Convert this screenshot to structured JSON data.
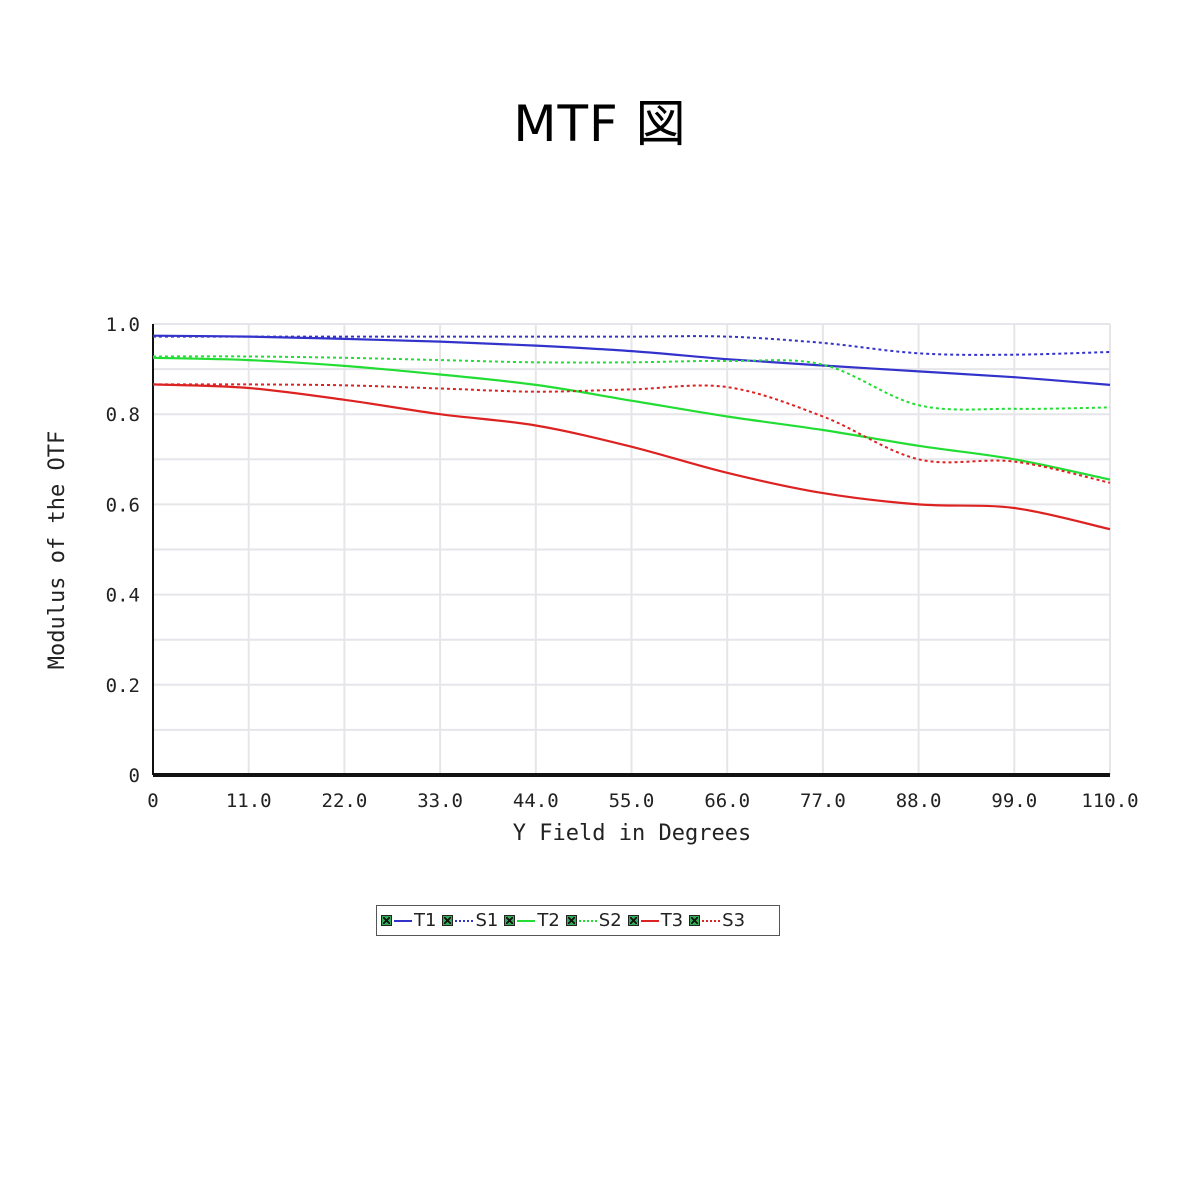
{
  "page": {
    "title": "MTF 図"
  },
  "chart_data": {
    "type": "line",
    "title": "",
    "xlabel": "Y Field in Degrees",
    "ylabel": "Modulus of the OTF",
    "xlim": [
      0,
      110
    ],
    "ylim": [
      0,
      1.0
    ],
    "x_ticks": [
      "0",
      "11.0",
      "22.0",
      "33.0",
      "44.0",
      "55.0",
      "66.0",
      "77.0",
      "88.0",
      "99.0",
      "110.0"
    ],
    "y_ticks": [
      "0",
      "0.2",
      "0.4",
      "0.6",
      "0.8",
      "1.0"
    ],
    "grid": true,
    "legend_position": "bottom",
    "x": [
      0,
      11,
      22,
      33,
      44,
      55,
      66,
      77,
      88,
      99,
      110
    ],
    "series": [
      {
        "name": "T1",
        "color": "#3333cc",
        "style": "solid",
        "values": [
          0.974,
          0.972,
          0.967,
          0.961,
          0.952,
          0.94,
          0.922,
          0.908,
          0.895,
          0.882,
          0.865
        ]
      },
      {
        "name": "S1",
        "color": "#3333cc",
        "style": "dotted",
        "values": [
          0.972,
          0.972,
          0.972,
          0.972,
          0.972,
          0.972,
          0.972,
          0.958,
          0.935,
          0.932,
          0.938
        ]
      },
      {
        "name": "T2",
        "color": "#22dd33",
        "style": "solid",
        "values": [
          0.925,
          0.92,
          0.907,
          0.888,
          0.865,
          0.83,
          0.795,
          0.765,
          0.73,
          0.7,
          0.655
        ]
      },
      {
        "name": "S2",
        "color": "#22dd33",
        "style": "dotted",
        "values": [
          0.928,
          0.928,
          0.925,
          0.92,
          0.915,
          0.915,
          0.918,
          0.91,
          0.82,
          0.812,
          0.815
        ]
      },
      {
        "name": "T3",
        "color": "#dd2222",
        "style": "solid",
        "values": [
          0.866,
          0.858,
          0.832,
          0.8,
          0.775,
          0.728,
          0.67,
          0.625,
          0.6,
          0.592,
          0.545
        ]
      },
      {
        "name": "S3",
        "color": "#dd2222",
        "style": "dotted",
        "values": [
          0.866,
          0.866,
          0.864,
          0.857,
          0.85,
          0.855,
          0.86,
          0.795,
          0.7,
          0.695,
          0.648
        ]
      }
    ]
  }
}
